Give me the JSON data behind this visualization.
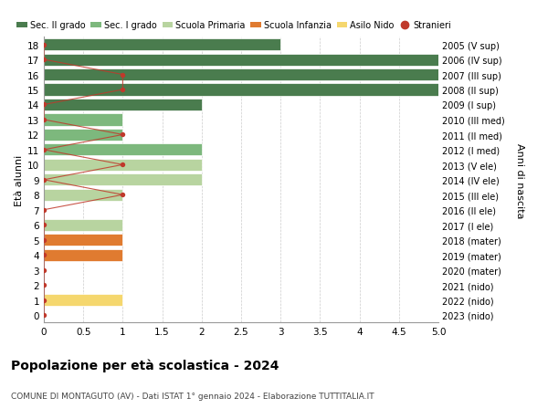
{
  "ages": [
    18,
    17,
    16,
    15,
    14,
    13,
    12,
    11,
    10,
    9,
    8,
    7,
    6,
    5,
    4,
    3,
    2,
    1,
    0
  ],
  "right_labels": [
    "2005 (V sup)",
    "2006 (IV sup)",
    "2007 (III sup)",
    "2008 (II sup)",
    "2009 (I sup)",
    "2010 (III med)",
    "2011 (II med)",
    "2012 (I med)",
    "2013 (V ele)",
    "2014 (IV ele)",
    "2015 (III ele)",
    "2016 (II ele)",
    "2017 (I ele)",
    "2018 (mater)",
    "2019 (mater)",
    "2020 (mater)",
    "2021 (nido)",
    "2022 (nido)",
    "2023 (nido)"
  ],
  "bar_values": [
    3,
    5,
    5,
    5,
    2,
    1,
    1,
    2,
    2,
    2,
    1,
    0,
    1,
    1,
    1,
    0,
    0,
    1,
    0
  ],
  "bar_colors": [
    "#4a7c4e",
    "#4a7c4e",
    "#4a7c4e",
    "#4a7c4e",
    "#4a7c4e",
    "#7db87d",
    "#7db87d",
    "#7db87d",
    "#b8d4a0",
    "#b8d4a0",
    "#b8d4a0",
    "#b8d4a0",
    "#b8d4a0",
    "#e07b30",
    "#e07b30",
    "#e07b30",
    "#f5d76e",
    "#f5d76e",
    "#f5d76e"
  ],
  "stranieri_x": [
    0,
    0,
    1,
    1,
    0,
    0,
    1,
    0,
    1,
    0,
    1,
    0,
    0,
    0,
    0,
    0,
    0,
    0,
    0
  ],
  "legend_labels": [
    "Sec. II grado",
    "Sec. I grado",
    "Scuola Primaria",
    "Scuola Infanzia",
    "Asilo Nido",
    "Stranieri"
  ],
  "legend_colors": [
    "#4a7c4e",
    "#7db87d",
    "#b8d4a0",
    "#e07b30",
    "#f5d76e",
    "#c0392b"
  ],
  "title": "Popolazione per età scolastica - 2024",
  "subtitle": "COMUNE DI MONTAGUTO (AV) - Dati ISTAT 1° gennaio 2024 - Elaborazione TUTTITALIA.IT",
  "ylabel_left": "Età alunni",
  "ylabel_right": "Anni di nascita",
  "xlim": [
    0,
    5.0
  ],
  "xticks": [
    0,
    0.5,
    1.0,
    1.5,
    2.0,
    2.5,
    3.0,
    3.5,
    4.0,
    4.5,
    5.0
  ],
  "xticklabels": [
    "0",
    "0.5",
    "1",
    "1.5",
    "2",
    "2.5",
    "3",
    "3.5",
    "4",
    "4.5",
    "5.0"
  ],
  "bg_color": "#ffffff",
  "grid_color": "#cccccc",
  "bar_height": 0.8
}
